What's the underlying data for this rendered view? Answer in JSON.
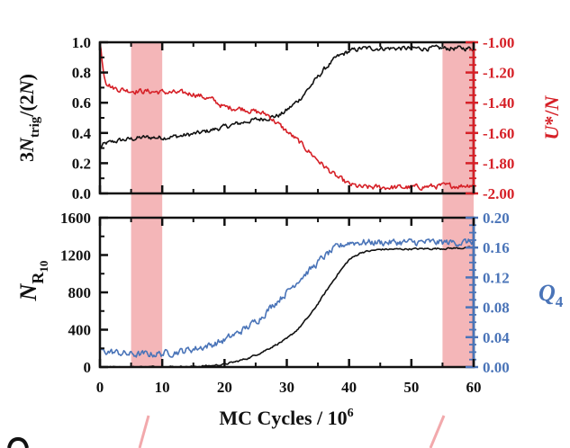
{
  "colors": {
    "black": "#111111",
    "red": "#d62027",
    "blue": "#4a74b8",
    "highlight": "#f2a9ac",
    "connector": "#f2a9ac"
  },
  "labels": {
    "top_left_a": "3",
    "top_left_b": "N",
    "top_left_sub": "trig",
    "top_left_c": "/(2",
    "top_left_d": "N",
    "top_left_e": ")",
    "top_right_a": "U",
    "top_right_b": "*/",
    "top_right_c": "N",
    "bottom_left_a": "N",
    "bottom_left_sub": "R",
    "bottom_left_subsub": "10",
    "bottom_right_a": "Q",
    "bottom_right_sub": "4",
    "xlabel_a": "MC Cycles / 10",
    "xlabel_sup": "6"
  },
  "chart_data": [
    {
      "type": "line",
      "panel": "top",
      "x_range": [
        0,
        60
      ],
      "highlight_bands": [
        [
          5,
          10
        ],
        [
          55,
          60
        ]
      ],
      "left_axis": {
        "label": "3N_trig/(2N)",
        "ylim": [
          0.0,
          1.0
        ],
        "ticks": [
          "0.0",
          "0.2",
          "0.4",
          "0.6",
          "0.8",
          "1.0"
        ],
        "tick_values": [
          0.0,
          0.2,
          0.4,
          0.6,
          0.8,
          1.0
        ]
      },
      "right_axis": {
        "label": "U*/N",
        "ylim": [
          -2.0,
          -1.0
        ],
        "ticks": [
          "-2.00",
          "-1.80",
          "-1.60",
          "-1.40",
          "-1.20",
          "-1.00"
        ],
        "tick_values": [
          -2.0,
          -1.8,
          -1.6,
          -1.4,
          -1.2,
          -1.0
        ]
      },
      "series": [
        {
          "name": "3N_trig/(2N)",
          "axis": "left",
          "color": "black",
          "x": [
            0,
            0.5,
            1,
            2,
            3,
            5,
            7,
            10,
            13,
            16,
            20,
            24,
            27,
            29,
            30,
            32,
            34,
            36,
            38,
            40,
            42,
            45,
            50,
            55,
            58,
            60
          ],
          "y": [
            0.3,
            0.32,
            0.33,
            0.34,
            0.35,
            0.36,
            0.37,
            0.37,
            0.38,
            0.4,
            0.44,
            0.48,
            0.5,
            0.52,
            0.55,
            0.62,
            0.72,
            0.82,
            0.9,
            0.94,
            0.96,
            0.96,
            0.96,
            0.96,
            0.96,
            0.96
          ],
          "noise": 0.013
        },
        {
          "name": "U*/N",
          "axis": "right",
          "color": "red",
          "x": [
            0,
            0.3,
            0.6,
            1,
            2,
            3,
            5,
            10,
            15,
            18,
            20,
            23,
            25,
            27,
            28,
            30,
            32,
            34,
            36,
            38,
            40,
            42,
            45,
            50,
            55,
            58,
            60
          ],
          "y": [
            -1.0,
            -1.1,
            -1.2,
            -1.26,
            -1.3,
            -1.31,
            -1.32,
            -1.33,
            -1.34,
            -1.38,
            -1.43,
            -1.44,
            -1.46,
            -1.48,
            -1.52,
            -1.59,
            -1.66,
            -1.74,
            -1.82,
            -1.89,
            -1.94,
            -1.96,
            -1.96,
            -1.96,
            -1.95,
            -1.95,
            -1.94
          ],
          "noise": 0.015
        }
      ]
    },
    {
      "type": "line",
      "panel": "bottom",
      "x_range": [
        0,
        60
      ],
      "xlabel": "MC Cycles / 10^6",
      "x_ticks": [
        "0",
        "10",
        "20",
        "30",
        "40",
        "50",
        "60"
      ],
      "x_tick_values": [
        0,
        10,
        20,
        30,
        40,
        50,
        60
      ],
      "highlight_bands": [
        [
          5,
          10
        ],
        [
          55,
          60
        ]
      ],
      "left_axis": {
        "label": "N_R10",
        "ylim": [
          0,
          1600
        ],
        "ticks": [
          "0",
          "400",
          "800",
          "1200",
          "1600"
        ],
        "tick_values": [
          0,
          400,
          800,
          1200,
          1600
        ]
      },
      "right_axis": {
        "label": "Q4",
        "ylim": [
          0.0,
          0.2
        ],
        "ticks": [
          "0.00",
          "0.04",
          "0.08",
          "0.12",
          "0.16",
          "0.20"
        ],
        "tick_values": [
          0.0,
          0.04,
          0.08,
          0.12,
          0.16,
          0.2
        ]
      },
      "series": [
        {
          "name": "N_R10",
          "axis": "left",
          "color": "black",
          "x": [
            0,
            5,
            10,
            15,
            18,
            20,
            22,
            24,
            26,
            28,
            30,
            32,
            34,
            36,
            38,
            40,
            42,
            45,
            50,
            55,
            58,
            60
          ],
          "y": [
            0,
            0,
            2,
            5,
            15,
            30,
            60,
            100,
            160,
            230,
            300,
            420,
            580,
            780,
            980,
            1150,
            1230,
            1260,
            1265,
            1270,
            1275,
            1280
          ],
          "noise": 8
        },
        {
          "name": "Q4",
          "axis": "right",
          "color": "blue",
          "x": [
            0,
            2,
            5,
            7,
            10,
            13,
            16,
            18,
            20,
            22,
            24,
            26,
            28,
            30,
            32,
            34,
            36,
            38,
            40,
            42,
            45,
            50,
            55,
            58,
            60
          ],
          "y": [
            0.022,
            0.02,
            0.017,
            0.017,
            0.018,
            0.021,
            0.026,
            0.03,
            0.036,
            0.045,
            0.055,
            0.068,
            0.085,
            0.1,
            0.118,
            0.132,
            0.148,
            0.16,
            0.167,
            0.167,
            0.167,
            0.167,
            0.167,
            0.167,
            0.168
          ],
          "noise": 0.004
        }
      ]
    }
  ]
}
